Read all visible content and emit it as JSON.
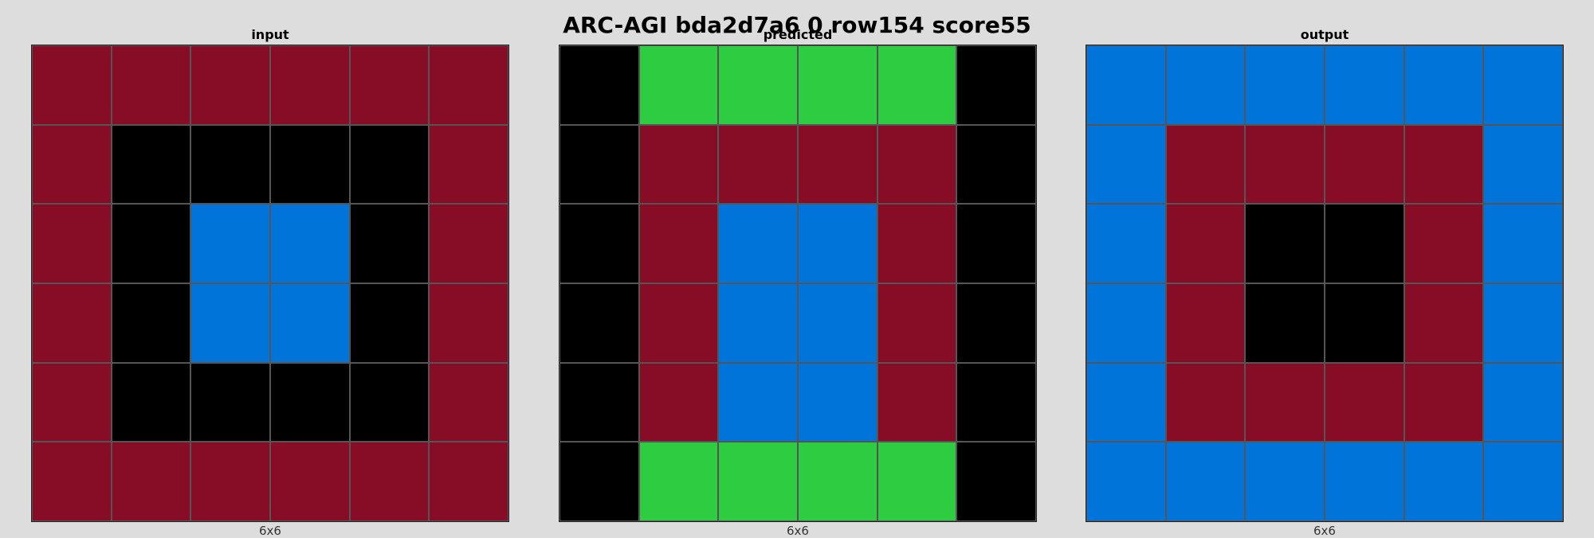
{
  "title": "ARC-AGI bda2d7a6 0 row154 score55",
  "palette": {
    "0": "#000000",
    "1": "#0074D9",
    "3": "#2ECC40",
    "9": "#870C25"
  },
  "panels": [
    {
      "label": "input",
      "dims": "6x6",
      "grid": [
        [
          9,
          9,
          9,
          9,
          9,
          9
        ],
        [
          9,
          0,
          0,
          0,
          0,
          9
        ],
        [
          9,
          0,
          1,
          1,
          0,
          9
        ],
        [
          9,
          0,
          1,
          1,
          0,
          9
        ],
        [
          9,
          0,
          0,
          0,
          0,
          9
        ],
        [
          9,
          9,
          9,
          9,
          9,
          9
        ]
      ]
    },
    {
      "label": "predicted",
      "dims": "6x6",
      "grid": [
        [
          0,
          3,
          3,
          3,
          3,
          0
        ],
        [
          0,
          9,
          9,
          9,
          9,
          0
        ],
        [
          0,
          9,
          1,
          1,
          9,
          0
        ],
        [
          0,
          9,
          1,
          1,
          9,
          0
        ],
        [
          0,
          9,
          1,
          1,
          9,
          0
        ],
        [
          0,
          3,
          3,
          3,
          3,
          0
        ]
      ]
    },
    {
      "label": "output",
      "dims": "6x6",
      "grid": [
        [
          1,
          1,
          1,
          1,
          1,
          1
        ],
        [
          1,
          9,
          9,
          9,
          9,
          1
        ],
        [
          1,
          9,
          0,
          0,
          9,
          1
        ],
        [
          1,
          9,
          0,
          0,
          9,
          1
        ],
        [
          1,
          9,
          9,
          9,
          9,
          1
        ],
        [
          1,
          1,
          1,
          1,
          1,
          1
        ]
      ]
    }
  ]
}
